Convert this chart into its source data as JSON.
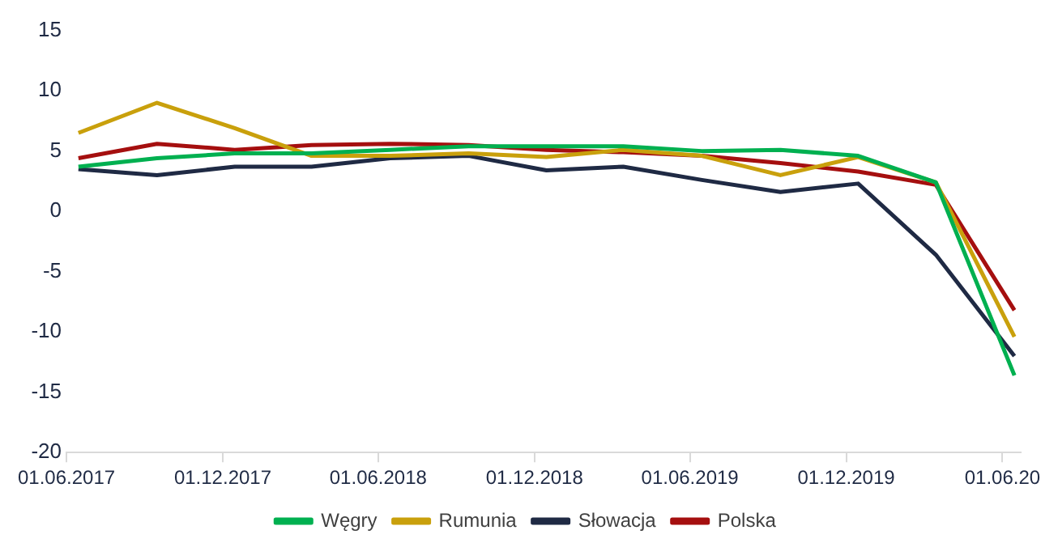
{
  "chart_data": {
    "type": "line",
    "x": [
      "2017-06-15",
      "2017-09-15",
      "2017-12-15",
      "2018-03-15",
      "2018-06-15",
      "2018-09-15",
      "2018-12-15",
      "2019-03-15",
      "2019-06-15",
      "2019-09-15",
      "2019-12-15",
      "2020-03-15",
      "2020-06-15"
    ],
    "series": [
      {
        "name": "Węgry",
        "color": "#00b050",
        "values": [
          3.7,
          4.4,
          4.8,
          4.8,
          5.1,
          5.4,
          5.4,
          5.4,
          5.0,
          5.1,
          4.6,
          2.4,
          -13.6
        ]
      },
      {
        "name": "Rumunia",
        "color": "#c9a00c",
        "values": [
          6.5,
          9.0,
          6.9,
          4.6,
          4.6,
          4.8,
          4.5,
          5.1,
          4.6,
          3.0,
          4.5,
          2.4,
          -10.4
        ]
      },
      {
        "name": "Słowacja",
        "color": "#1f2a44",
        "values": [
          3.5,
          3.0,
          3.7,
          3.7,
          4.4,
          4.6,
          3.4,
          3.7,
          2.6,
          1.6,
          2.3,
          -3.6,
          -12.0
        ]
      },
      {
        "name": "Polska",
        "color": "#a50f0f",
        "values": [
          4.4,
          5.6,
          5.1,
          5.5,
          5.6,
          5.5,
          5.1,
          4.9,
          4.6,
          4.0,
          3.3,
          2.2,
          -8.2
        ]
      }
    ],
    "xlim": [
      "2017-06-01",
      "2020-06-22"
    ],
    "xticks": [
      {
        "value": "2017-06-01",
        "label": "01.06.2017"
      },
      {
        "value": "2017-12-01",
        "label": "01.12.2017"
      },
      {
        "value": "2018-06-01",
        "label": "01.06.2018"
      },
      {
        "value": "2018-12-01",
        "label": "01.12.2018"
      },
      {
        "value": "2019-06-01",
        "label": "01.06.2019"
      },
      {
        "value": "2019-12-01",
        "label": "01.12.2019"
      },
      {
        "value": "2020-06-01",
        "label": "01.06.20"
      }
    ],
    "ylim": [
      -20,
      15
    ],
    "yticks": [
      -20,
      -15,
      -10,
      -5,
      0,
      5,
      10,
      15
    ],
    "grid": false,
    "legend": "bottom",
    "marker": "none",
    "line_style": "solid"
  }
}
